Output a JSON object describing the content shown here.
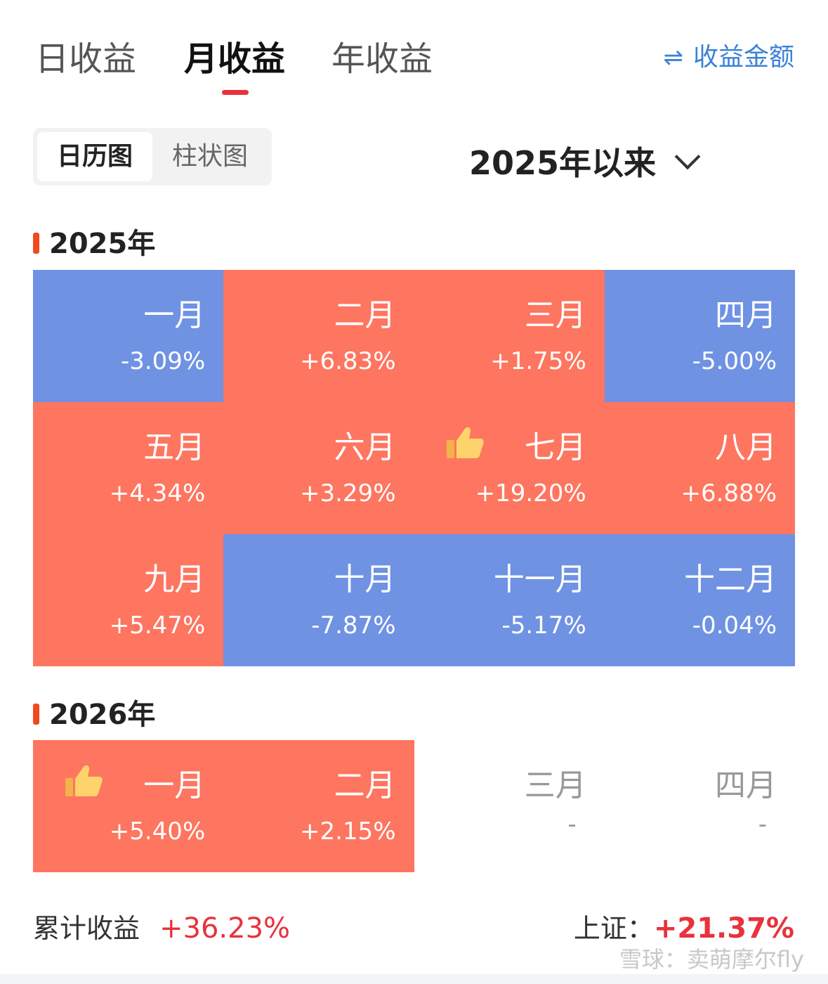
{
  "tabs": [
    {
      "label": "日收益",
      "active": false
    },
    {
      "label": "月收益",
      "active": true
    },
    {
      "label": "年收益",
      "active": false
    }
  ],
  "amount_toggle": {
    "icon": "⇌",
    "label": "收益金额"
  },
  "view_switch": {
    "calendar": "日历图",
    "bar": "柱状图"
  },
  "range_select": {
    "label": "2025年以来"
  },
  "years": [
    {
      "label": "2025年",
      "months": [
        {
          "name": "一月",
          "value": "-3.09%",
          "trend": "neg"
        },
        {
          "name": "二月",
          "value": "+6.83%",
          "trend": "pos"
        },
        {
          "name": "三月",
          "value": "+1.75%",
          "trend": "pos"
        },
        {
          "name": "四月",
          "value": "-5.00%",
          "trend": "neg"
        },
        {
          "name": "五月",
          "value": "+4.34%",
          "trend": "pos"
        },
        {
          "name": "六月",
          "value": "+3.29%",
          "trend": "pos"
        },
        {
          "name": "七月",
          "value": "+19.20%",
          "trend": "pos",
          "best": true
        },
        {
          "name": "八月",
          "value": "+6.88%",
          "trend": "pos"
        },
        {
          "name": "九月",
          "value": "+5.47%",
          "trend": "pos"
        },
        {
          "name": "十月",
          "value": "-7.87%",
          "trend": "neg"
        },
        {
          "name": "十一月",
          "value": "-5.17%",
          "trend": "neg"
        },
        {
          "name": "十二月",
          "value": "-0.04%",
          "trend": "neg"
        }
      ]
    },
    {
      "label": "2026年",
      "months": [
        {
          "name": "一月",
          "value": "+5.40%",
          "trend": "pos",
          "best": true
        },
        {
          "name": "二月",
          "value": "+2.15%",
          "trend": "pos"
        },
        {
          "name": "三月",
          "value": "-",
          "trend": "empty"
        },
        {
          "name": "四月",
          "value": "-",
          "trend": "empty"
        }
      ]
    }
  ],
  "summary": {
    "total_label": "累计收益",
    "total_value": "+36.23%",
    "index_label": "上证：",
    "index_value": "+21.37%"
  },
  "watermark": "雪球：卖萌摩尔fly",
  "colors": {
    "pos": "#fe7560",
    "neg": "#6f92e3",
    "accent": "#e8323c",
    "link": "#3b82d6"
  }
}
